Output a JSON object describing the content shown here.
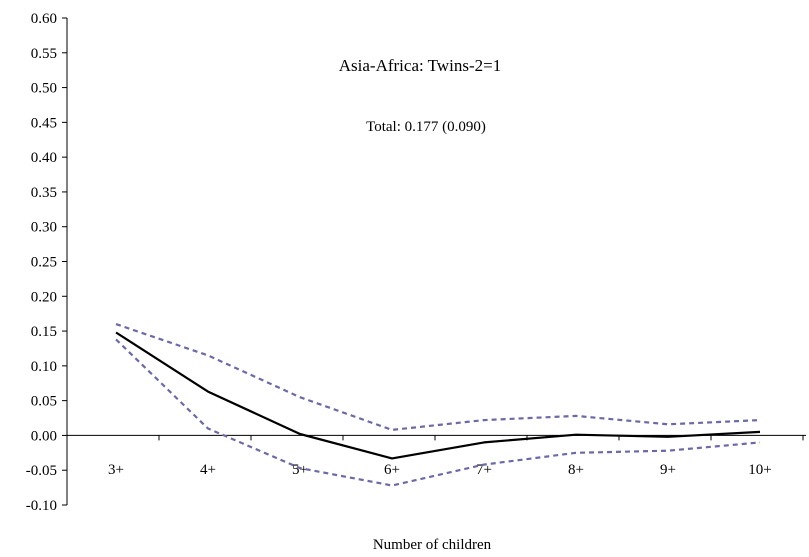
{
  "chart_data": {
    "type": "line",
    "title": "",
    "annotations": [
      "Asia-Africa: Twins-2=1",
      "Total: 0.177 (0.090)"
    ],
    "xlabel": "Number of children",
    "ylabel": "",
    "categories": [
      "3+",
      "4+",
      "5+",
      "6+",
      "7+",
      "8+",
      "9+",
      "10+"
    ],
    "ylim": [
      -0.1,
      0.6
    ],
    "yticks": [
      "0.60",
      "0.55",
      "0.50",
      "0.45",
      "0.40",
      "0.35",
      "0.30",
      "0.25",
      "0.20",
      "0.15",
      "0.10",
      "0.05",
      "0.00",
      "-0.05",
      "-0.10"
    ],
    "grid": false,
    "legend": "none",
    "series": [
      {
        "style": "solid",
        "color": "#000000",
        "values": [
          0.148,
          0.063,
          0.002,
          -0.033,
          -0.01,
          0.001,
          -0.002,
          0.005
        ]
      },
      {
        "style": "dashed",
        "color": "#6a6aa8",
        "values": [
          0.16,
          0.115,
          0.055,
          0.008,
          0.022,
          0.028,
          0.016,
          0.022
        ]
      },
      {
        "style": "dashed",
        "color": "#6a6aa8",
        "values": [
          0.138,
          0.01,
          -0.047,
          -0.072,
          -0.042,
          -0.025,
          -0.022,
          -0.01
        ]
      }
    ]
  }
}
